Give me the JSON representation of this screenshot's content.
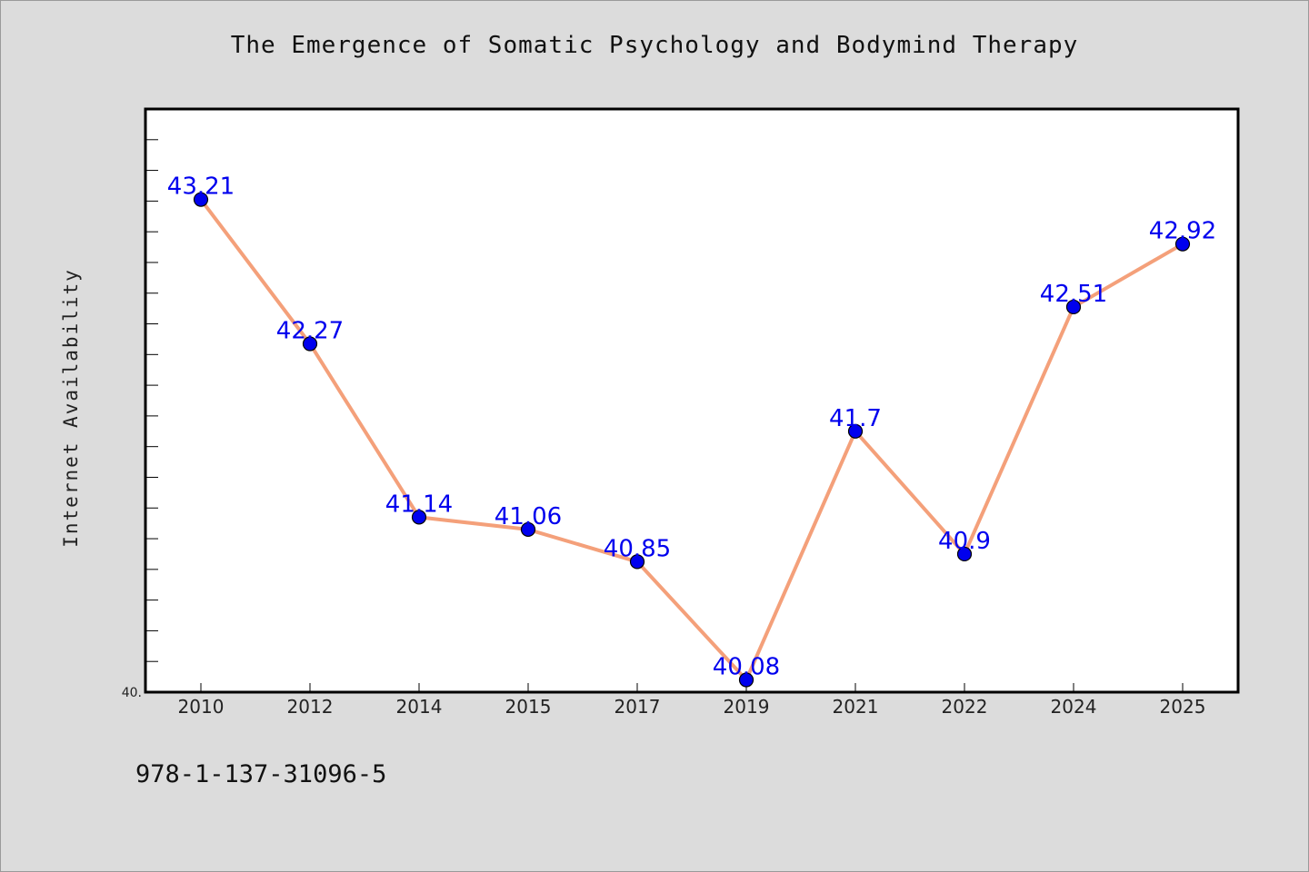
{
  "page": {
    "background_color": "#dcdcdc"
  },
  "isbn_text": "978-1-137-31096-5",
  "chart_data": {
    "type": "line",
    "title": "The Emergence of Somatic Psychology and Bodymind Therapy",
    "xlabel": "",
    "ylabel": "Internet Availability",
    "categories": [
      "2010",
      "2012",
      "2014",
      "2015",
      "2017",
      "2019",
      "2021",
      "2022",
      "2024",
      "2025"
    ],
    "values": [
      43.21,
      42.27,
      41.14,
      41.06,
      40.85,
      40.08,
      41.7,
      40.9,
      42.51,
      42.92
    ],
    "value_labels": [
      "43.21",
      "42.27",
      "41.14",
      "41.06",
      "40.85",
      "40.08",
      "41.7",
      "40.9",
      "42.51",
      "42.92"
    ],
    "ylim": [
      40.0,
      43.8
    ],
    "y_tick_labels": [
      "40."
    ],
    "grid": false,
    "legend": "none",
    "line_color": "#f4a07a",
    "marker_color": "#0000ee",
    "label_color": "#0000ee"
  }
}
